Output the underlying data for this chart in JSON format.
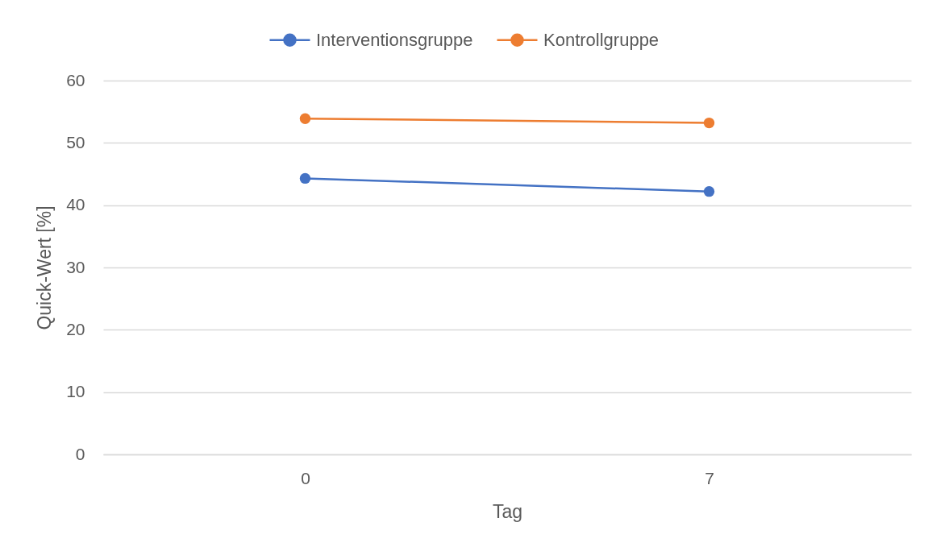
{
  "chart_data": {
    "type": "line",
    "xlabel": "Tag",
    "ylabel": "Quick-Wert [%]",
    "categories": [
      "0",
      "7"
    ],
    "series": [
      {
        "name": "Interventionsgruppe",
        "color": "#4472c4",
        "values": [
          44.3,
          42.2
        ]
      },
      {
        "name": "Kontrollgruppe",
        "color": "#ed7d31",
        "values": [
          53.9,
          53.2
        ]
      }
    ],
    "ylim": [
      0,
      60
    ],
    "yticks": [
      0,
      10,
      20,
      30,
      40,
      50,
      60
    ],
    "grid": "y",
    "legend": "top",
    "marker": "circle",
    "line_style": "solid"
  }
}
